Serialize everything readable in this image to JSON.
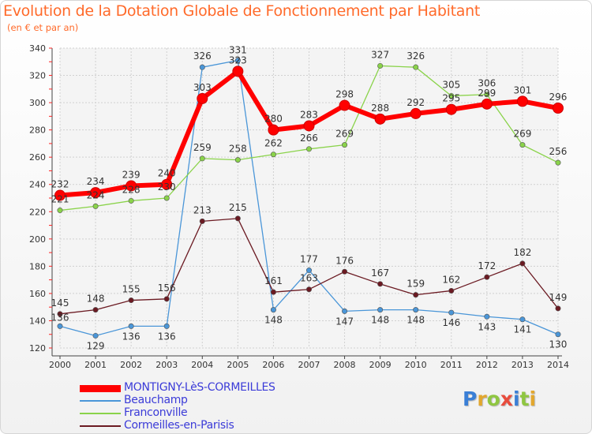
{
  "header": {
    "title": "Evolution de la Dotation Globale de Fonctionnement par Habitant",
    "subtitle": "(en € et par an)"
  },
  "brand": {
    "logo_letters": [
      "P",
      "r",
      "o",
      "x",
      "i",
      "t",
      "i"
    ],
    "logo_colors": [
      "#3a7fd6",
      "#e2a72e",
      "#8fc641",
      "#e84c3d",
      "#3a7fd6",
      "#8fc641",
      "#e2a72e"
    ]
  },
  "chart_data": {
    "type": "line",
    "title": "Evolution de la Dotation Globale de Fonctionnement par Habitant",
    "subtitle": "(en € et par an)",
    "x": [
      "2000",
      "2001",
      "2002",
      "2003",
      "2004",
      "2005",
      "2006",
      "2007",
      "2008",
      "2009",
      "2010",
      "2011",
      "2012",
      "2013",
      "2014"
    ],
    "ylim": [
      120,
      340
    ],
    "yticks": [
      120,
      140,
      160,
      180,
      200,
      220,
      240,
      260,
      280,
      300,
      320,
      340
    ],
    "grid": true,
    "legend_position": "bottom-left",
    "series": [
      {
        "name": "MONTIGNY-LèS-CORMEILLES",
        "color": "#ff0000",
        "values": [
          232,
          234,
          239,
          240,
          303,
          323,
          280,
          283,
          298,
          288,
          292,
          295,
          299,
          301,
          296
        ],
        "labels": [
          "232",
          "234",
          "239",
          "240",
          "303",
          "323",
          "280",
          "283",
          "298",
          "288",
          "292",
          "295",
          "299",
          "301",
          "296"
        ]
      },
      {
        "name": "Beauchamp",
        "color": "#4a96d8",
        "values": [
          136,
          129,
          136,
          136,
          326,
          331,
          148,
          177,
          147,
          148,
          148,
          146,
          143,
          141,
          130
        ],
        "labels": [
          "136",
          "129",
          "136",
          "136",
          "326",
          "331",
          "148",
          "177",
          "147",
          "148",
          "148",
          "146",
          "143",
          "141",
          "130"
        ]
      },
      {
        "name": "Franconville",
        "color": "#8ad34a",
        "values": [
          221,
          224,
          228,
          230,
          259,
          258,
          262,
          266,
          269,
          327,
          326,
          305,
          306,
          269,
          256
        ],
        "labels": [
          "221",
          "224",
          "228",
          "230",
          "259",
          "258",
          "262",
          "266",
          "269",
          "327",
          "326",
          "305",
          "306",
          "269",
          "256"
        ]
      },
      {
        "name": "Cormeilles-en-Parisis",
        "color": "#6b1a22",
        "values": [
          145,
          148,
          155,
          156,
          213,
          215,
          161,
          163,
          176,
          167,
          159,
          162,
          172,
          182,
          149
        ],
        "labels": [
          "145",
          "148",
          "155",
          "156",
          "213",
          "215",
          "161",
          "163",
          "176",
          "167",
          "159",
          "162",
          "172",
          "182",
          "149"
        ]
      }
    ]
  }
}
